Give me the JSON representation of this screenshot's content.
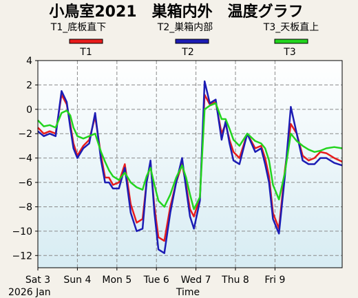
{
  "chart_data": {
    "type": "line",
    "title": "小鳥室2021　巣箱内外　温度グラフ",
    "xlabel": "Time",
    "ylabel": "",
    "year_month_label": "2026 Jan",
    "ylim": [
      -13,
      4
    ],
    "yticks": [
      4,
      2,
      0,
      -2,
      -4,
      -6,
      -8,
      -10,
      -12
    ],
    "xlim": [
      0,
      7.7
    ],
    "xticks": [
      {
        "label": "Sat 3",
        "value": 0
      },
      {
        "label": "Sun 4",
        "value": 1
      },
      {
        "label": "Mon 5",
        "value": 2
      },
      {
        "label": "Tue 6",
        "value": 3
      },
      {
        "label": "Wed 7",
        "value": 4
      },
      {
        "label": "Thu 8",
        "value": 5
      },
      {
        "label": "Fri 9",
        "value": 6
      }
    ],
    "grid": true,
    "legend_position": "top",
    "legend_descriptions": [
      "T1_底板直下",
      "T2_巣箱内部",
      "T3_天板直上"
    ],
    "x": [
      0,
      0.15,
      0.3,
      0.45,
      0.6,
      0.73,
      0.82,
      0.9,
      1.0,
      1.15,
      1.3,
      1.45,
      1.6,
      1.7,
      1.8,
      1.9,
      2.05,
      2.2,
      2.35,
      2.5,
      2.65,
      2.75,
      2.85,
      2.95,
      3.05,
      3.2,
      3.35,
      3.5,
      3.65,
      3.75,
      3.85,
      3.95,
      4.1,
      4.22,
      4.35,
      4.5,
      4.65,
      4.75,
      4.85,
      4.95,
      5.1,
      5.3,
      5.5,
      5.65,
      5.75,
      5.85,
      5.95,
      6.1,
      6.25,
      6.4,
      6.55,
      6.7,
      6.85,
      7.0,
      7.15,
      7.3,
      7.5,
      7.7
    ],
    "series": [
      {
        "name": "T1",
        "color": "#e81c1c",
        "values": [
          -1.5,
          -2.0,
          -1.8,
          -2.0,
          1.2,
          0.4,
          -1.2,
          -2.8,
          -3.8,
          -3.0,
          -2.5,
          -0.6,
          -3.8,
          -5.6,
          -5.6,
          -6.2,
          -6.0,
          -4.5,
          -7.8,
          -9.3,
          -9.0,
          -6.0,
          -4.4,
          -8.0,
          -10.5,
          -10.8,
          -8.0,
          -6.0,
          -4.5,
          -6.2,
          -8.2,
          -8.8,
          -7.2,
          1.2,
          0.4,
          0.6,
          -2.0,
          -1.2,
          -2.5,
          -3.5,
          -4.0,
          -2.0,
          -3.2,
          -3.0,
          -4.0,
          -5.5,
          -8.5,
          -9.8,
          -5.0,
          -1.2,
          -2.0,
          -3.8,
          -4.2,
          -4.0,
          -3.5,
          -3.6,
          -4.0,
          -4.3
        ]
      },
      {
        "name": "T2",
        "color": "#1c1cb4",
        "values": [
          -1.8,
          -2.2,
          -2.0,
          -2.2,
          1.5,
          0.6,
          -1.5,
          -3.2,
          -4.0,
          -3.2,
          -2.8,
          -0.3,
          -4.2,
          -6.0,
          -6.0,
          -6.5,
          -6.5,
          -4.8,
          -8.5,
          -10.0,
          -9.8,
          -6.0,
          -4.2,
          -8.5,
          -11.5,
          -11.8,
          -8.5,
          -6.0,
          -4.0,
          -6.5,
          -8.8,
          -9.8,
          -7.5,
          2.3,
          0.5,
          0.8,
          -2.5,
          -1.0,
          -2.8,
          -4.2,
          -4.5,
          -2.0,
          -3.5,
          -3.2,
          -4.5,
          -6.0,
          -9.0,
          -10.2,
          -5.5,
          0.2,
          -2.0,
          -4.2,
          -4.5,
          -4.5,
          -4.0,
          -4.0,
          -4.4,
          -4.6
        ]
      },
      {
        "name": "T3",
        "color": "#22d41e",
        "values": [
          -0.9,
          -1.4,
          -1.3,
          -1.5,
          -0.3,
          -0.1,
          -0.5,
          -1.5,
          -2.2,
          -2.4,
          -2.2,
          -2.0,
          -3.5,
          -4.3,
          -5.0,
          -5.5,
          -5.8,
          -5.2,
          -6.0,
          -6.4,
          -6.6,
          -5.5,
          -4.8,
          -6.2,
          -7.5,
          -8.0,
          -7.0,
          -5.6,
          -4.6,
          -5.6,
          -7.0,
          -8.2,
          -7.2,
          0.0,
          0.3,
          0.5,
          -0.8,
          -0.8,
          -1.6,
          -2.5,
          -3.0,
          -2.0,
          -2.6,
          -2.8,
          -3.2,
          -4.2,
          -6.2,
          -7.4,
          -5.2,
          -2.0,
          -2.6,
          -3.0,
          -3.3,
          -3.5,
          -3.4,
          -3.2,
          -3.1,
          -3.2
        ]
      }
    ]
  }
}
